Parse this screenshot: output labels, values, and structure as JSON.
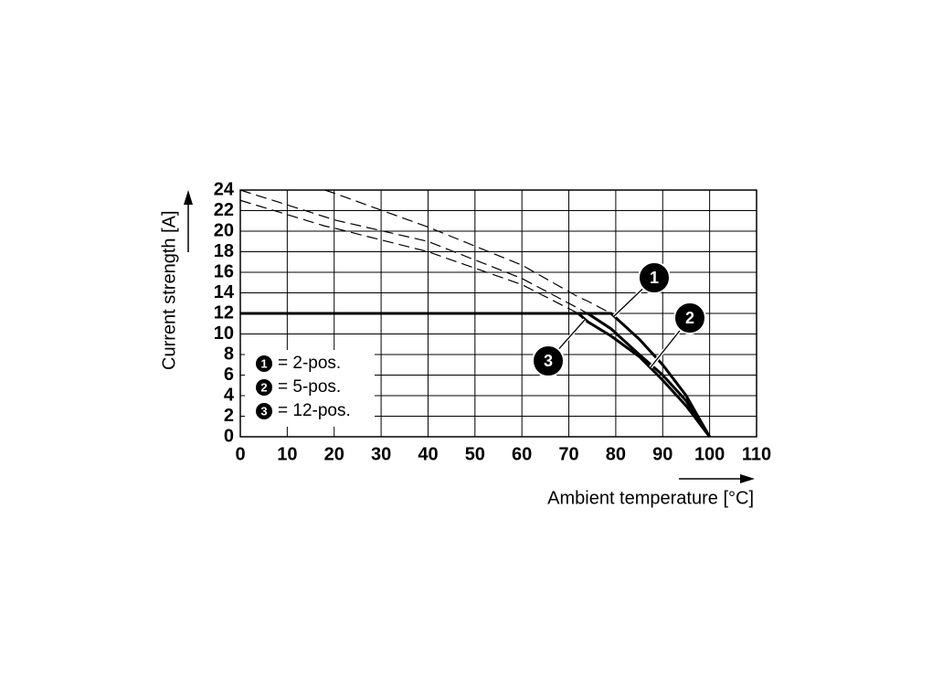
{
  "chart_data": {
    "type": "line",
    "x_label": "Ambient temperature [°C]",
    "y_label": "Current strength [A]",
    "x": [
      0,
      18,
      20,
      40,
      60,
      72,
      74,
      79,
      85,
      90,
      95,
      100
    ],
    "series": [
      {
        "marker": "1",
        "name": "= 2-pos.",
        "color": "#000000",
        "style": "solid",
        "values": [
          12,
          12,
          12,
          12,
          12,
          12,
          12,
          12,
          9.5,
          7,
          4,
          0
        ]
      },
      {
        "marker": "2",
        "name": "= 5-pos.",
        "color": "#000000",
        "style": "solid",
        "values": [
          12,
          12,
          12,
          12,
          12,
          12,
          12,
          10.5,
          8,
          6,
          3.5,
          0
        ]
      },
      {
        "marker": "3",
        "name": "= 12-pos.",
        "color": "#000000",
        "style": "solid",
        "values": [
          12,
          12,
          12,
          12,
          12,
          12,
          11.2,
          9.8,
          7.8,
          5.5,
          3,
          0
        ]
      },
      {
        "color": "#000000",
        "style": "dashed",
        "values": [
          null,
          24,
          23.7,
          20.4,
          16.7,
          13.6,
          13.2,
          12,
          null,
          null,
          null,
          null
        ]
      },
      {
        "color": "#000000",
        "style": "dashed",
        "values": [
          24,
          21.4,
          21.1,
          19,
          15.4,
          12.5,
          12,
          null,
          null,
          null,
          null,
          null
        ]
      },
      {
        "color": "#000000",
        "style": "dashed",
        "values": [
          23,
          20.5,
          20.3,
          18,
          14.8,
          12,
          null,
          null,
          null,
          null,
          null,
          null
        ]
      }
    ],
    "xlim": [
      0,
      110
    ],
    "xticks": [
      0,
      10,
      20,
      30,
      40,
      50,
      60,
      70,
      80,
      90,
      100,
      110
    ],
    "ylim": [
      0,
      24
    ],
    "yticks": [
      0,
      2,
      4,
      6,
      8,
      10,
      12,
      14,
      16,
      18,
      20,
      22,
      24
    ],
    "grid": true
  }
}
